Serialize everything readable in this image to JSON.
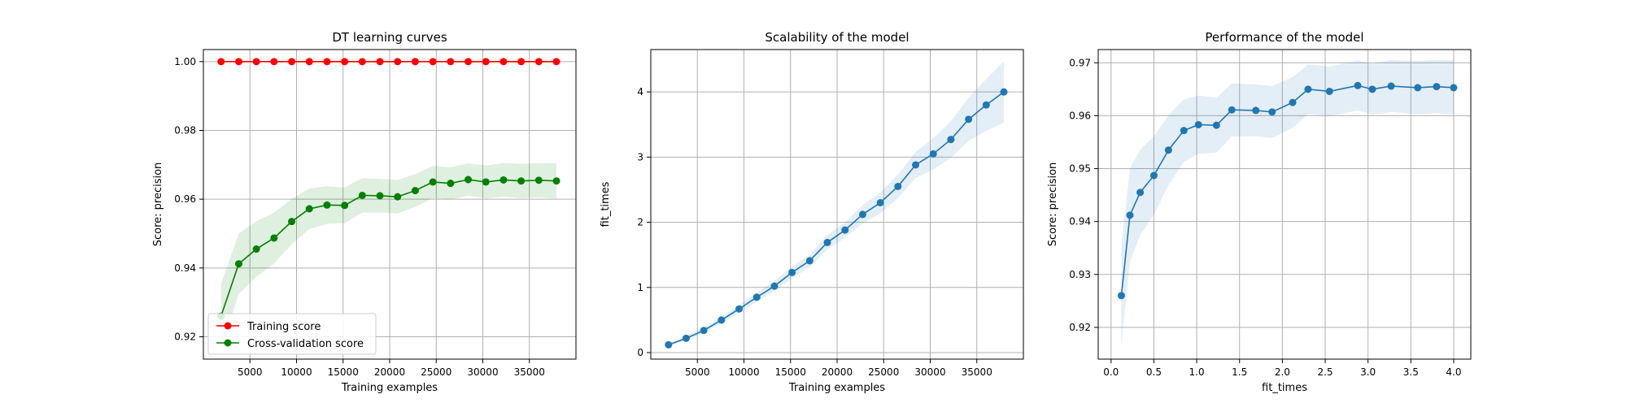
{
  "chart_data": [
    {
      "type": "line",
      "title": "DT learning curves",
      "xlabel": "Training examples",
      "ylabel": "Score: precision",
      "xlim": [
        0,
        40000
      ],
      "ylim": [
        0.9135,
        1.0035
      ],
      "xticks": [
        5000,
        10000,
        15000,
        20000,
        25000,
        30000,
        35000
      ],
      "yticks": [
        0.92,
        0.94,
        0.96,
        0.98,
        1.0
      ],
      "ytick_labels": [
        "0.92",
        "0.94",
        "0.96",
        "0.98",
        "1.00"
      ],
      "grid": true,
      "legend_position": "lower-left",
      "x": [
        1900,
        3795,
        5690,
        7585,
        9480,
        11375,
        13270,
        15165,
        17060,
        18955,
        20850,
        22745,
        24640,
        26535,
        28430,
        30325,
        32220,
        34115,
        36010,
        37905
      ],
      "series": [
        {
          "name": "Training score",
          "color": "#ff0000",
          "values": [
            1.0,
            1.0,
            1.0,
            1.0,
            1.0,
            1.0,
            1.0,
            1.0,
            1.0,
            1.0,
            1.0,
            1.0,
            1.0,
            1.0,
            1.0,
            1.0,
            1.0,
            1.0,
            1.0,
            1.0
          ]
        },
        {
          "name": "Cross-validation score",
          "color": "#008000",
          "values": [
            0.926,
            0.9412,
            0.9455,
            0.9487,
            0.9535,
            0.9572,
            0.9583,
            0.9582,
            0.9611,
            0.961,
            0.9607,
            0.9625,
            0.965,
            0.9646,
            0.9657,
            0.965,
            0.9656,
            0.9653,
            0.9655,
            0.9653
          ],
          "band": [
            0.0094,
            0.0088,
            0.0081,
            0.0074,
            0.0066,
            0.0059,
            0.0055,
            0.0052,
            0.005,
            0.0049,
            0.0049,
            0.0048,
            0.0047,
            0.0047,
            0.0047,
            0.0048,
            0.0049,
            0.005,
            0.005,
            0.0051
          ]
        }
      ]
    },
    {
      "type": "line",
      "title": "Scalability of the model",
      "xlabel": "Training examples",
      "ylabel": "fit_times",
      "xlim": [
        0,
        40000
      ],
      "ylim": [
        -0.1,
        4.65
      ],
      "xticks": [
        5000,
        10000,
        15000,
        20000,
        25000,
        30000,
        35000
      ],
      "yticks": [
        0,
        1,
        2,
        3,
        4
      ],
      "ytick_labels": [
        "0",
        "1",
        "2",
        "3",
        "4"
      ],
      "grid": true,
      "x": [
        1900,
        3795,
        5690,
        7585,
        9480,
        11375,
        13270,
        15165,
        17060,
        18955,
        20850,
        22745,
        24640,
        26535,
        28430,
        30325,
        32220,
        34115,
        36010,
        37905
      ],
      "series": [
        {
          "color": "#1f77b4",
          "values": [
            0.12,
            0.22,
            0.34,
            0.5,
            0.67,
            0.85,
            1.02,
            1.23,
            1.41,
            1.69,
            1.88,
            2.12,
            2.3,
            2.55,
            2.88,
            3.05,
            3.27,
            3.58,
            3.8,
            4.0
          ],
          "band": [
            0.02,
            0.03,
            0.04,
            0.05,
            0.06,
            0.07,
            0.08,
            0.09,
            0.1,
            0.11,
            0.12,
            0.14,
            0.16,
            0.18,
            0.2,
            0.24,
            0.28,
            0.33,
            0.4,
            0.47
          ]
        }
      ]
    },
    {
      "type": "line",
      "title": "Performance of the model",
      "xlabel": "fit_times",
      "ylabel": "Score: precision",
      "xlim": [
        -0.15,
        4.2
      ],
      "ylim": [
        0.914,
        0.9725
      ],
      "xticks": [
        0.0,
        0.5,
        1.0,
        1.5,
        2.0,
        2.5,
        3.0,
        3.5,
        4.0
      ],
      "xtick_labels": [
        "0.0",
        "0.5",
        "1.0",
        "1.5",
        "2.0",
        "2.5",
        "3.0",
        "3.5",
        "4.0"
      ],
      "yticks": [
        0.92,
        0.93,
        0.94,
        0.95,
        0.96,
        0.97
      ],
      "ytick_labels": [
        "0.92",
        "0.93",
        "0.94",
        "0.95",
        "0.96",
        "0.97"
      ],
      "grid": true,
      "x": [
        0.12,
        0.22,
        0.34,
        0.5,
        0.67,
        0.85,
        1.02,
        1.23,
        1.41,
        1.69,
        1.88,
        2.12,
        2.3,
        2.55,
        2.88,
        3.05,
        3.27,
        3.58,
        3.8,
        4.0
      ],
      "series": [
        {
          "color": "#1f77b4",
          "values": [
            0.926,
            0.9412,
            0.9455,
            0.9487,
            0.9535,
            0.9572,
            0.9583,
            0.9582,
            0.9611,
            0.961,
            0.9607,
            0.9625,
            0.965,
            0.9646,
            0.9657,
            0.965,
            0.9656,
            0.9653,
            0.9655,
            0.9653
          ],
          "band": [
            0.0094,
            0.0088,
            0.0081,
            0.0074,
            0.0066,
            0.0059,
            0.0055,
            0.0052,
            0.005,
            0.0049,
            0.0049,
            0.0048,
            0.0047,
            0.0047,
            0.0047,
            0.0048,
            0.0049,
            0.005,
            0.005,
            0.0051
          ]
        }
      ]
    }
  ]
}
